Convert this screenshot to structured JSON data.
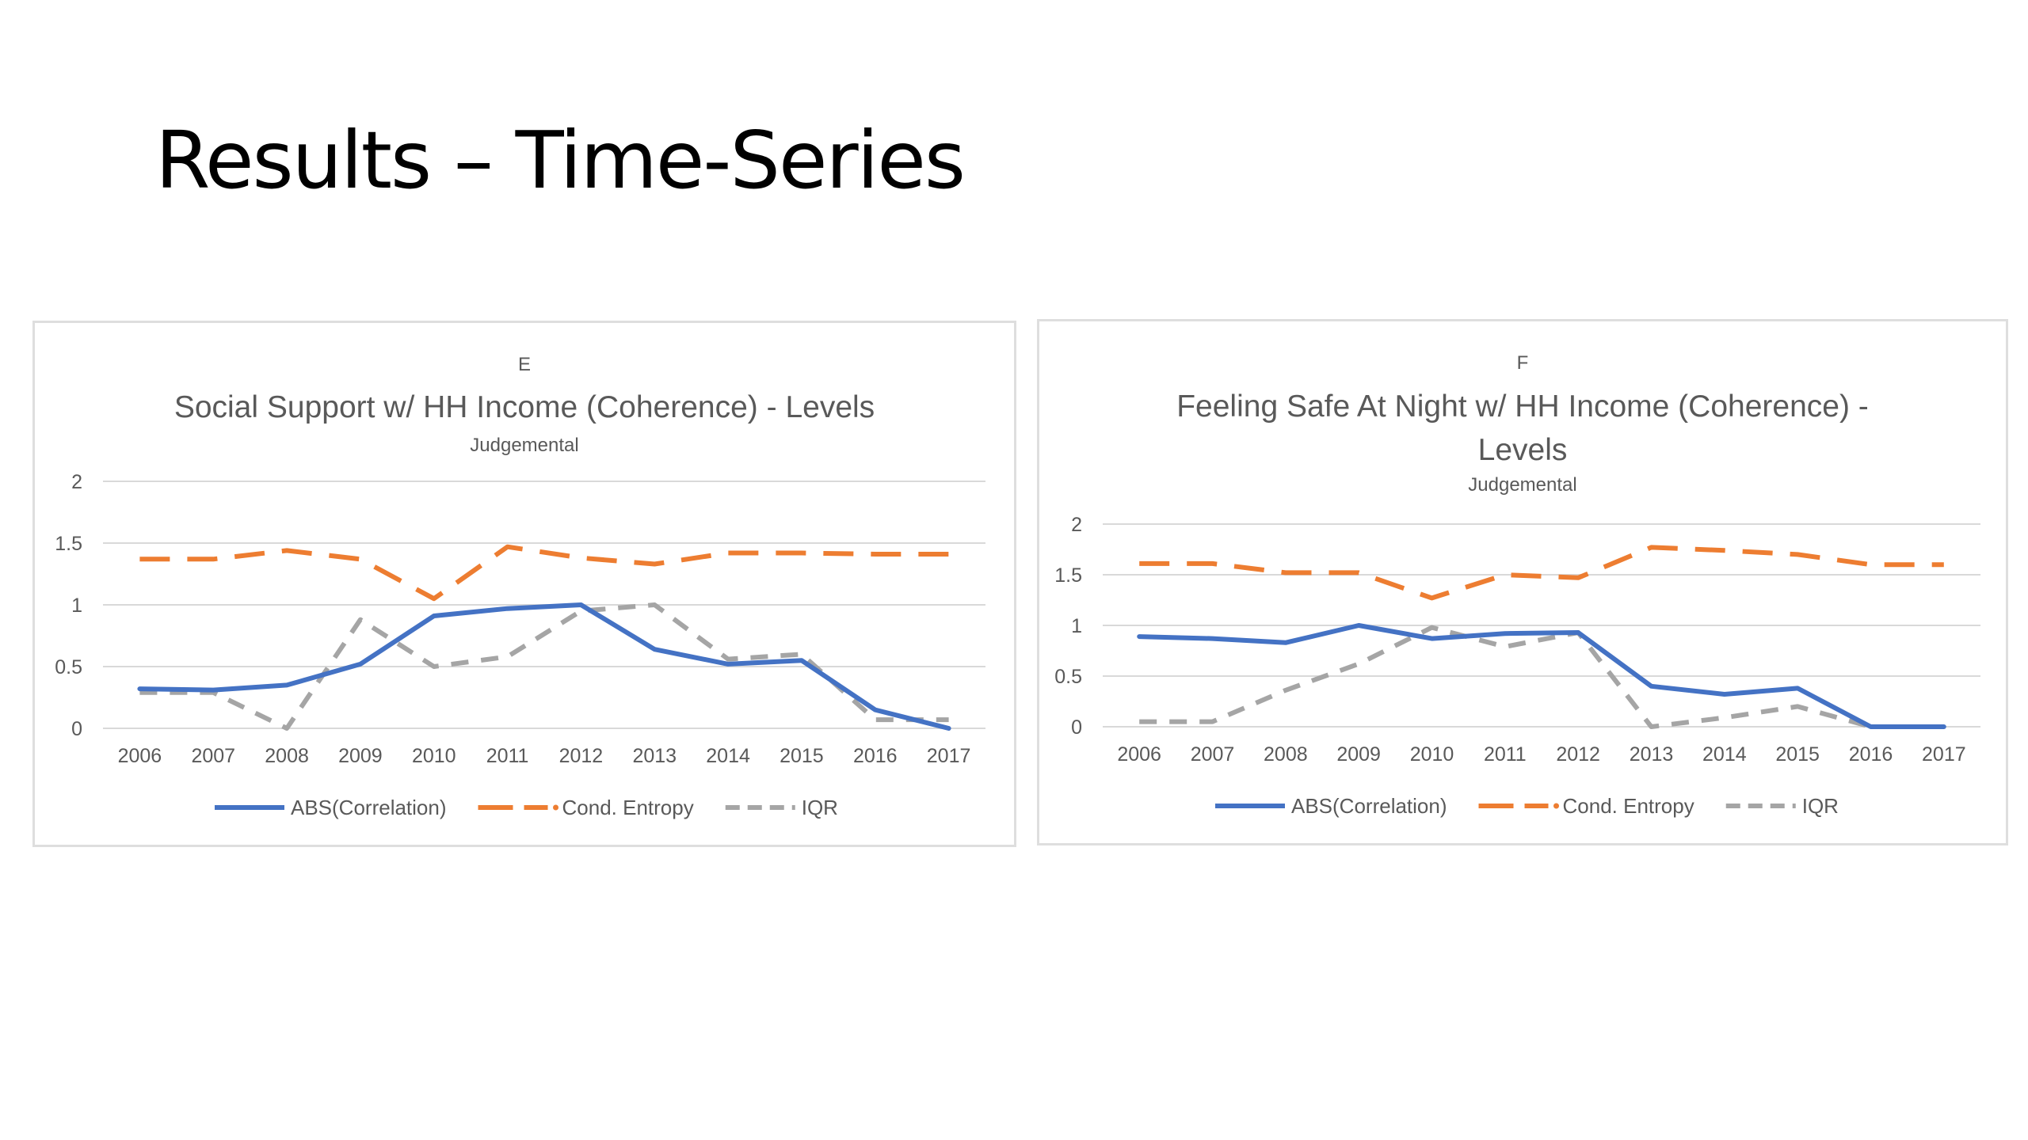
{
  "slide": {
    "title": "Results – Time-Series"
  },
  "colors": {
    "abs": "#4472C4",
    "cond": "#ED7D31",
    "iqr": "#A5A5A5",
    "grid": "#D9D9D9",
    "text": "#595959"
  },
  "chart_data": [
    {
      "type": "line",
      "panel_letter": "E",
      "title_lines": [
        "Social Support w/ HH Income (Coherence) - Levels"
      ],
      "subtitle": "Judgemental",
      "x": [
        "2006",
        "2007",
        "2008",
        "2009",
        "2010",
        "2011",
        "2012",
        "2013",
        "2014",
        "2015",
        "2016",
        "2017"
      ],
      "ylim": [
        0,
        2
      ],
      "yticks": [
        "0",
        "0.5",
        "1",
        "1.5",
        "2"
      ],
      "grid": true,
      "legend_position": "bottom",
      "series": [
        {
          "name": "ABS(Correlation)",
          "style": "solid",
          "values": [
            0.32,
            0.31,
            0.35,
            0.52,
            0.91,
            0.97,
            1.0,
            0.64,
            0.52,
            0.55,
            0.15,
            0.0
          ]
        },
        {
          "name": "Cond. Entropy",
          "style": "dashed",
          "values": [
            1.37,
            1.37,
            1.44,
            1.37,
            1.05,
            1.47,
            1.38,
            1.33,
            1.42,
            1.42,
            1.41,
            1.41
          ]
        },
        {
          "name": "IQR",
          "style": "dashed",
          "values": [
            0.29,
            0.29,
            0.0,
            0.88,
            0.5,
            0.58,
            0.95,
            1.0,
            0.56,
            0.6,
            0.07,
            0.07
          ]
        }
      ]
    },
    {
      "type": "line",
      "panel_letter": "F",
      "title_lines": [
        "Feeling Safe At Night w/ HH Income (Coherence) -",
        "Levels"
      ],
      "subtitle": "Judgemental",
      "x": [
        "2006",
        "2007",
        "2008",
        "2009",
        "2010",
        "2011",
        "2012",
        "2013",
        "2014",
        "2015",
        "2016",
        "2017"
      ],
      "ylim": [
        0,
        2
      ],
      "yticks": [
        "0",
        "0.5",
        "1",
        "1.5",
        "2"
      ],
      "grid": true,
      "legend_position": "bottom",
      "series": [
        {
          "name": "ABS(Correlation)",
          "style": "solid",
          "values": [
            0.89,
            0.87,
            0.83,
            1.0,
            0.87,
            0.92,
            0.93,
            0.4,
            0.32,
            0.38,
            0.0,
            0.0
          ]
        },
        {
          "name": "Cond. Entropy",
          "style": "dashed",
          "values": [
            1.61,
            1.61,
            1.52,
            1.52,
            1.27,
            1.5,
            1.47,
            1.77,
            1.74,
            1.7,
            1.6,
            1.6
          ]
        },
        {
          "name": "IQR",
          "style": "dashed",
          "values": [
            0.05,
            0.05,
            0.36,
            0.62,
            0.98,
            0.79,
            0.93,
            0.0,
            0.09,
            0.2,
            0.0,
            0.0
          ]
        }
      ]
    }
  ]
}
